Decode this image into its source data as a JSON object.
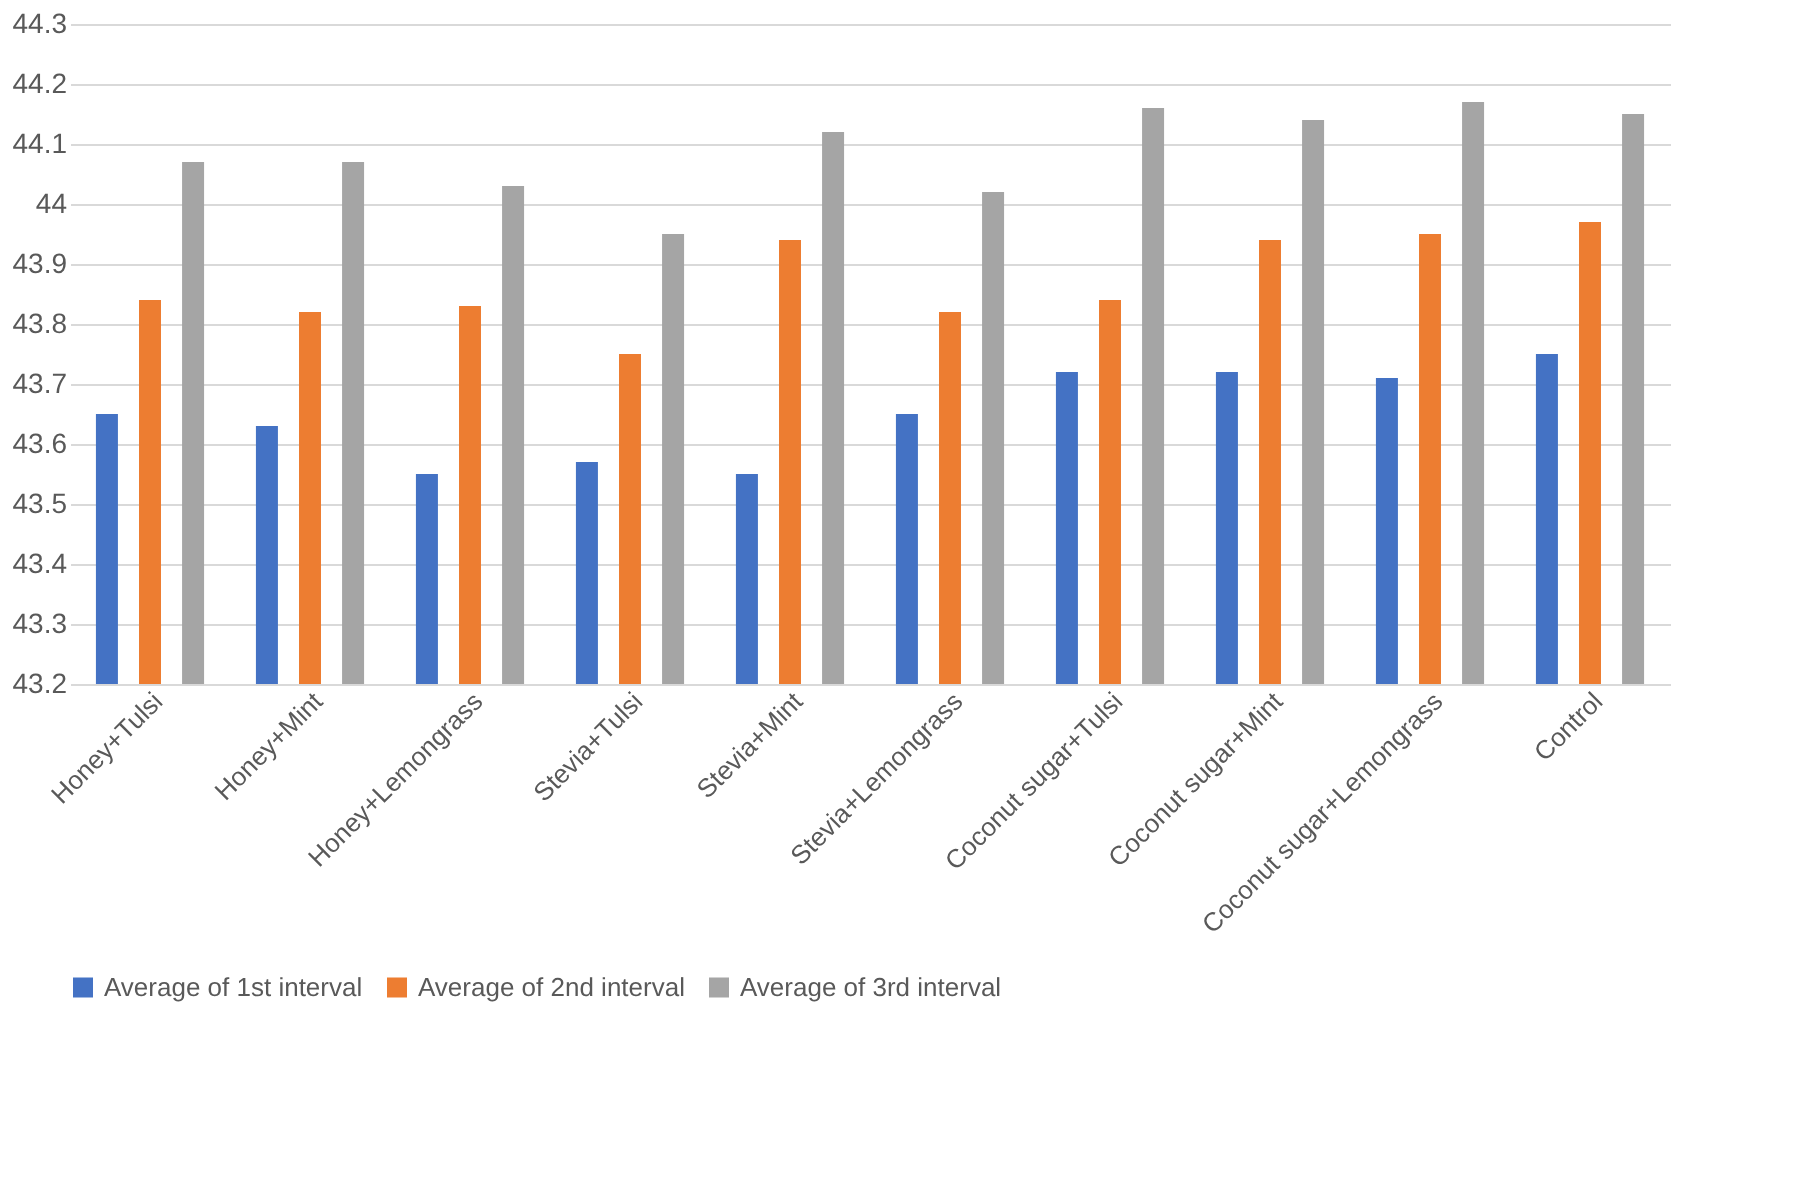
{
  "chart_data": {
    "type": "bar",
    "categories": [
      "Honey+Tulsi",
      "Honey+Mint",
      "Honey+Lemongrass",
      "Stevia+Tulsi",
      "Stevia+Mint",
      "Stevia+Lemongrass",
      "Coconut sugar+Tulsi",
      "Coconut sugar+Mint",
      "Coconut sugar+Lemongrass",
      "Control"
    ],
    "series": [
      {
        "name": "Average of 1st interval",
        "color": "#4472c4",
        "values": [
          43.65,
          43.63,
          43.55,
          43.57,
          43.55,
          43.65,
          43.72,
          43.72,
          43.71,
          43.75
        ]
      },
      {
        "name": "Average of 2nd interval",
        "color": "#ed7d31",
        "values": [
          43.84,
          43.82,
          43.83,
          43.75,
          43.94,
          43.82,
          43.84,
          43.94,
          43.95,
          43.97
        ]
      },
      {
        "name": "Average of 3rd interval",
        "color": "#a5a5a5",
        "values": [
          44.07,
          44.07,
          44.03,
          43.95,
          44.12,
          44.02,
          44.16,
          44.14,
          44.17,
          44.15
        ]
      }
    ],
    "ylim": [
      43.2,
      44.3
    ],
    "yticks": [
      43.2,
      43.3,
      43.4,
      43.5,
      43.6,
      43.7,
      43.8,
      43.9,
      44,
      44.1,
      44.2,
      44.3
    ],
    "grid": "y",
    "legend": "bottom"
  }
}
